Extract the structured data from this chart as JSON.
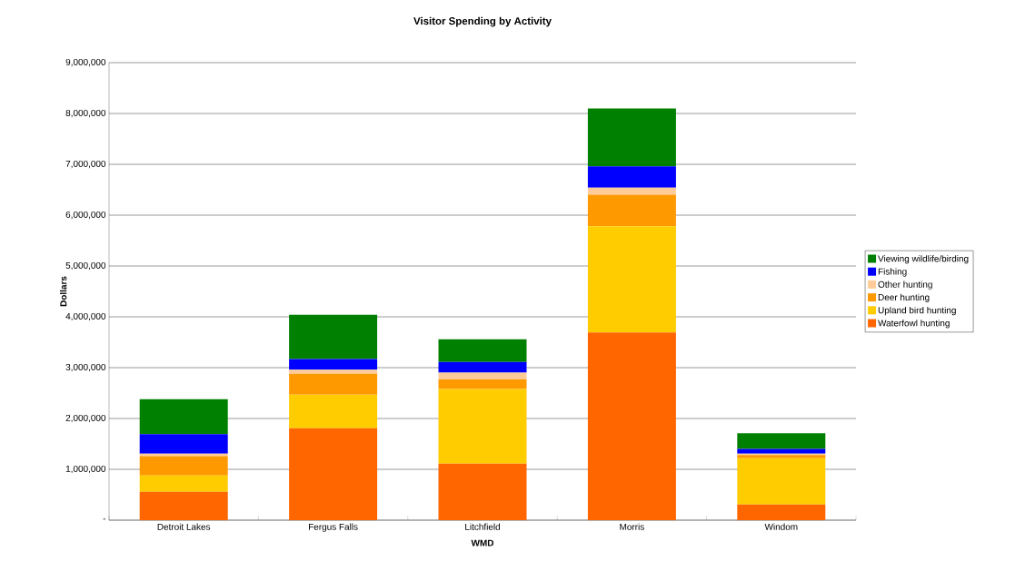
{
  "chart_data": {
    "type": "bar",
    "stacked": true,
    "title": "Visitor Spending by Activity",
    "xlabel": "WMD",
    "ylabel": "Dollars",
    "categories": [
      "Detroit Lakes",
      "Fergus Falls",
      "Litchfield",
      "Morris",
      "Windom"
    ],
    "series": [
      {
        "name": "Waterfowl hunting",
        "color": "#ff6600",
        "values": [
          560000,
          1810000,
          1110000,
          3690000,
          310000
        ]
      },
      {
        "name": "Upland bird hunting",
        "color": "#ffcc00",
        "values": [
          320000,
          660000,
          1470000,
          2090000,
          910000
        ]
      },
      {
        "name": "Deer hunting",
        "color": "#ff9900",
        "values": [
          380000,
          410000,
          190000,
          620000,
          60000
        ]
      },
      {
        "name": "Other hunting",
        "color": "#ffcc99",
        "values": [
          50000,
          80000,
          130000,
          140000,
          30000
        ]
      },
      {
        "name": "Fishing",
        "color": "#0000ff",
        "values": [
          380000,
          210000,
          210000,
          420000,
          90000
        ]
      },
      {
        "name": "Viewing wildlife/birding",
        "color": "#008000",
        "values": [
          690000,
          870000,
          450000,
          1140000,
          310000
        ]
      }
    ],
    "ylim": [
      0,
      9000000
    ],
    "yticks": [
      {
        "value": 0,
        "label": "-"
      },
      {
        "value": 1000000,
        "label": "1,000,000"
      },
      {
        "value": 2000000,
        "label": "2,000,000"
      },
      {
        "value": 3000000,
        "label": "3,000,000"
      },
      {
        "value": 4000000,
        "label": "4,000,000"
      },
      {
        "value": 5000000,
        "label": "5,000,000"
      },
      {
        "value": 6000000,
        "label": "6,000,000"
      },
      {
        "value": 7000000,
        "label": "7,000,000"
      },
      {
        "value": 8000000,
        "label": "8,000,000"
      },
      {
        "value": 9000000,
        "label": "9,000,000"
      }
    ],
    "grid": "y",
    "legend": "right"
  }
}
